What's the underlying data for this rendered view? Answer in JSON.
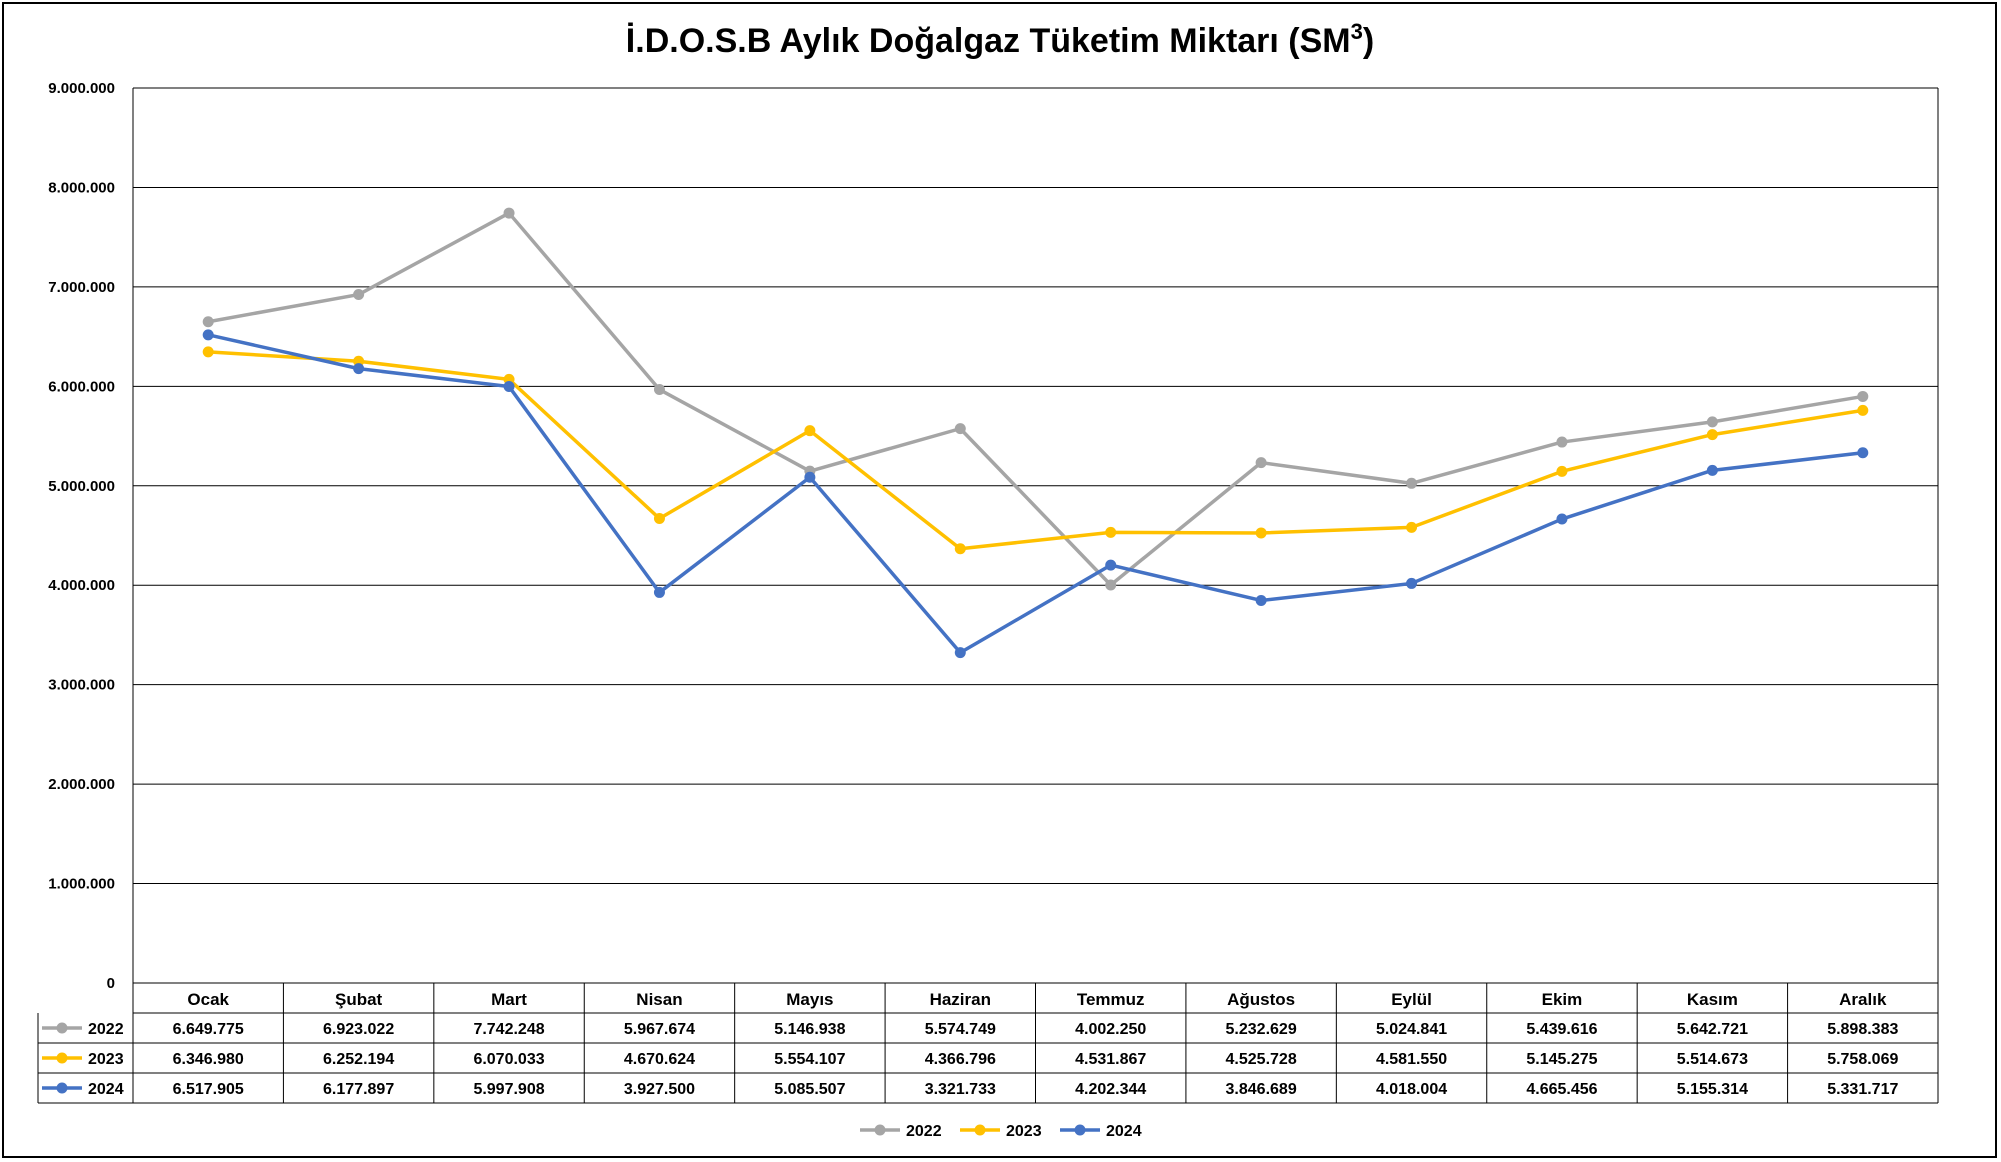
{
  "chart_data": {
    "type": "line",
    "title": "İ.D.O.S.B Aylık Doğalgaz Tüketim Miktarı (SM",
    "title_sup": "3",
    "title_close": ")",
    "ylim": [
      0,
      9000000
    ],
    "y_ticks": [
      "0",
      "1.000.000",
      "2.000.000",
      "3.000.000",
      "4.000.000",
      "5.000.000",
      "6.000.000",
      "7.000.000",
      "8.000.000",
      "9.000.000"
    ],
    "grid": true,
    "legend_position": "bottom",
    "data_table": true,
    "categories": [
      "Ocak",
      "Şubat",
      "Mart",
      "Nisan",
      "Mayıs",
      "Haziran",
      "Temmuz",
      "Ağustos",
      "Eylül",
      "Ekim",
      "Kasım",
      "Aralık"
    ],
    "series": [
      {
        "name": "2022",
        "color": "#A5A5A5",
        "values": [
          6649775,
          6923022,
          7742248,
          5967674,
          5146938,
          5574749,
          4002250,
          5232629,
          5024841,
          5439616,
          5642721,
          5898383
        ],
        "labels": [
          "6.649.775",
          "6.923.022",
          "7.742.248",
          "5.967.674",
          "5.146.938",
          "5.574.749",
          "4.002.250",
          "5.232.629",
          "5.024.841",
          "5.439.616",
          "5.642.721",
          "5.898.383"
        ]
      },
      {
        "name": "2023",
        "color": "#FFC000",
        "values": [
          6346980,
          6252194,
          6070033,
          4670624,
          5554107,
          4366796,
          4531867,
          4525728,
          4581550,
          5145275,
          5514673,
          5758069
        ],
        "labels": [
          "6.346.980",
          "6.252.194",
          "6.070.033",
          "4.670.624",
          "5.554.107",
          "4.366.796",
          "4.531.867",
          "4.525.728",
          "4.581.550",
          "5.145.275",
          "5.514.673",
          "5.758.069"
        ]
      },
      {
        "name": "2024",
        "color": "#4472C4",
        "values": [
          6517905,
          6177897,
          5997908,
          3927500,
          5085507,
          3321733,
          4202344,
          3846689,
          4018004,
          4665456,
          5155314,
          5331717
        ],
        "labels": [
          "6.517.905",
          "6.177.897",
          "5.997.908",
          "3.927.500",
          "5.085.507",
          "3.321.733",
          "4.202.344",
          "3.846.689",
          "4.018.004",
          "4.665.456",
          "5.155.314",
          "5.331.717"
        ]
      }
    ]
  }
}
